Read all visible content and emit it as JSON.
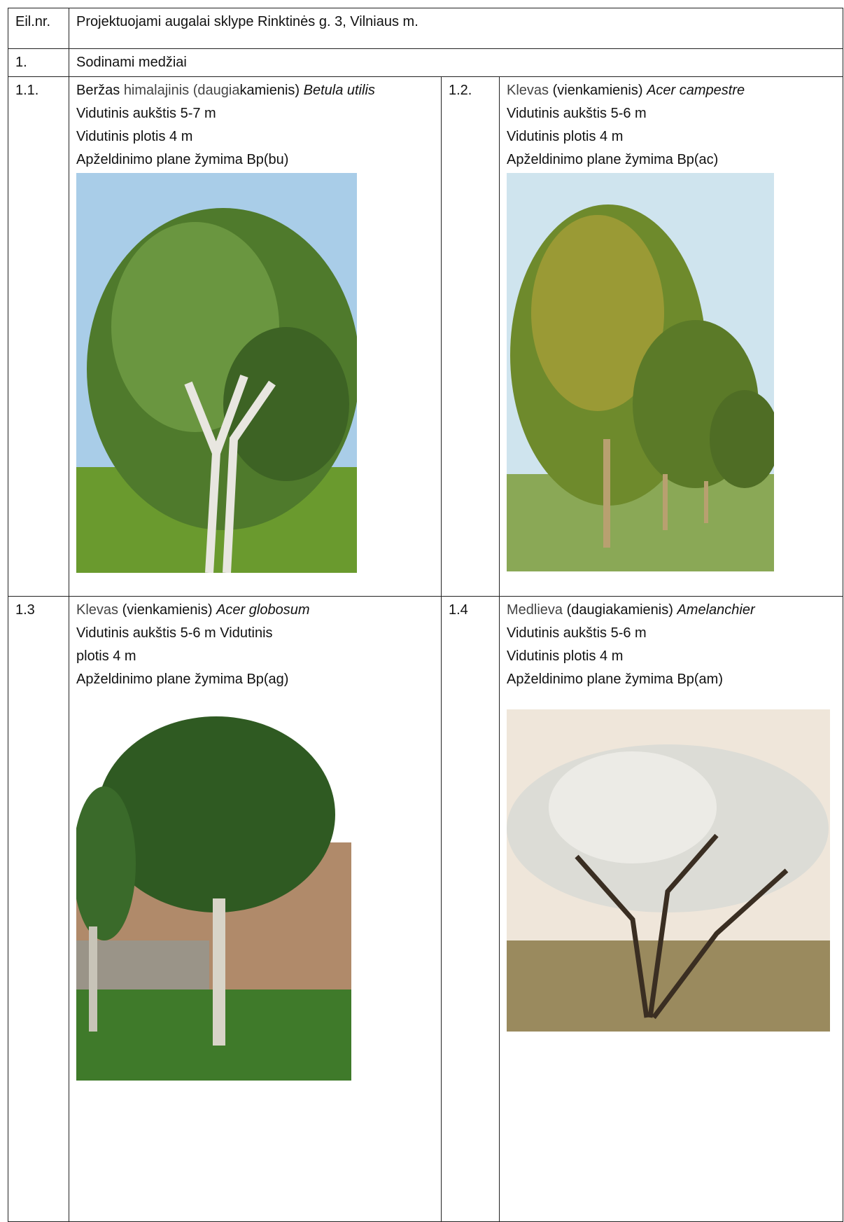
{
  "header": {
    "nr": "Eil.nr.",
    "title": "Projektuojami augalai sklype Rinktinės g. 3, Vilniaus m."
  },
  "section": {
    "nr": "1.",
    "title": "Sodinami medžiai"
  },
  "items": [
    {
      "nr": "1.1.",
      "name": [
        "Beržas",
        "himalajinis",
        "(daugia",
        "kamienis)",
        "Betula utilis"
      ],
      "lines": [
        "Vidutinis aukštis 5-7 m",
        "Vidutinis plotis 4 m",
        "Apželdinimo plane žymima Bp(bu)"
      ]
    },
    {
      "nr": "1.2.",
      "name": [
        "Klevas",
        "(vienkamienis)",
        "Acer campestre"
      ],
      "lines": [
        "Vidutinis aukštis 5-6 m",
        "Vidutinis plotis 4 m",
        "Apželdinimo plane žymima Bp(ac)"
      ]
    },
    {
      "nr": "1.3",
      "name": [
        "Klevas",
        "(vienkamienis)",
        "Acer globosum"
      ],
      "lines": [
        "Vidutinis aukštis 5-6 m Vidutinis",
        "plotis 4 m",
        "Apželdinimo plane žymima Bp(ag)"
      ]
    },
    {
      "nr": "1.4",
      "name": [
        "Medlieva",
        "(daugiakamienis)",
        "Amelanchier"
      ],
      "lines": [
        "Vidutinis aukštis 5-6 m",
        "Vidutinis plotis 4 m",
        "Apželdinimo plane žymima Bp(am)"
      ]
    }
  ]
}
